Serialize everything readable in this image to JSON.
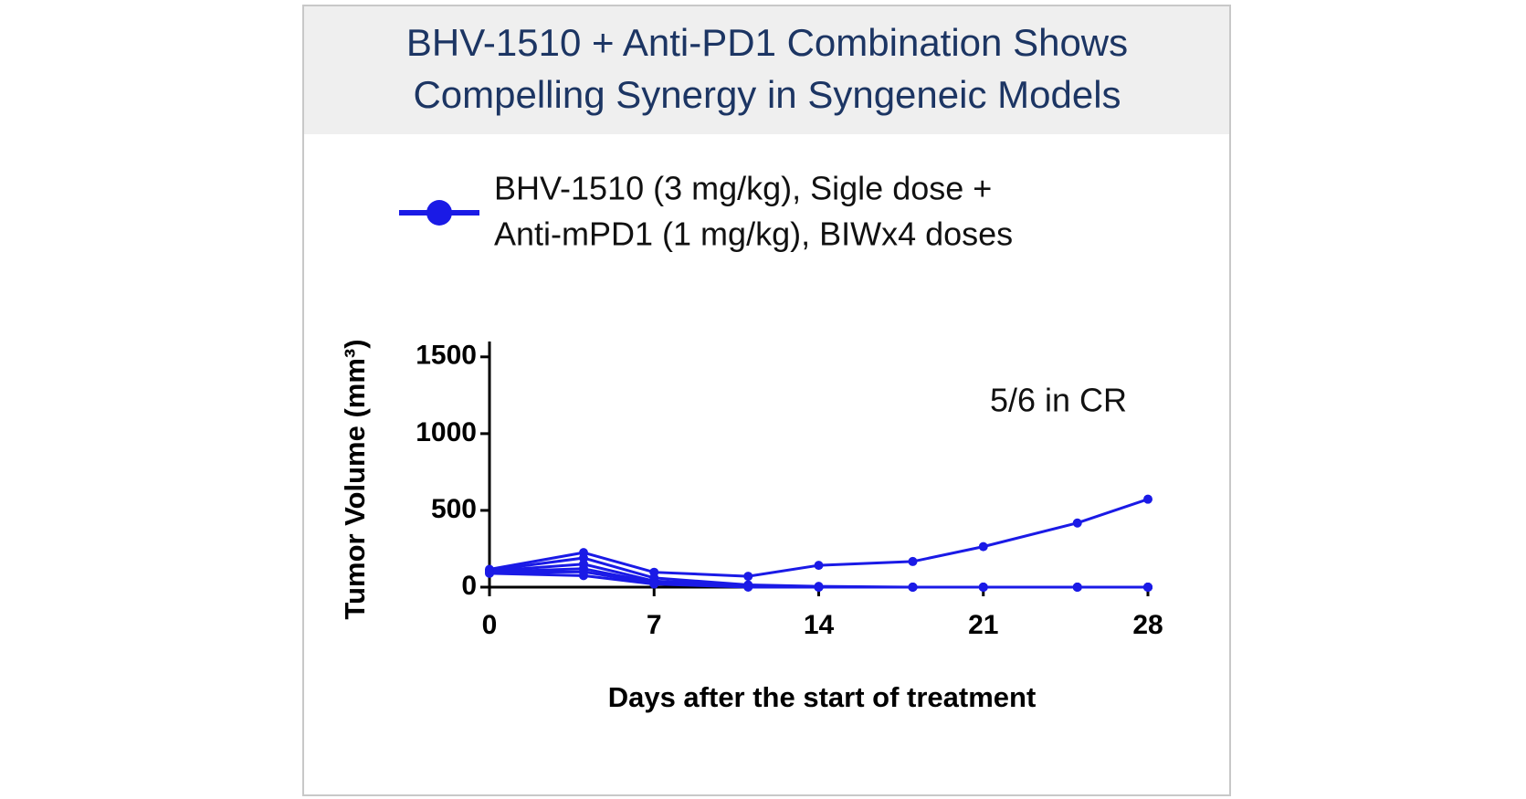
{
  "chart_data": {
    "type": "line",
    "title": [
      "BHV-1510 + Anti-PD1 Combination Shows",
      "Compelling Synergy in Syngeneic Models"
    ],
    "series": [
      {
        "name": [
          "BHV-1510 (3 mg/kg), Sigle dose +",
          "Anti-mPD1 (1 mg/kg), BIWx4 doses"
        ],
        "color": "#1a1ae6",
        "values": [
          [
            116,
            225,
            97,
            71,
            142,
            167,
            264,
            418,
            573
          ],
          [
            110,
            190,
            60,
            15,
            5,
            0,
            0,
            0,
            0
          ],
          [
            105,
            150,
            40,
            10,
            0,
            0,
            0,
            0,
            0
          ],
          [
            100,
            120,
            30,
            5,
            0,
            0,
            0,
            0,
            0
          ],
          [
            95,
            100,
            25,
            3,
            0,
            0,
            0,
            0,
            0
          ],
          [
            90,
            75,
            20,
            0,
            0,
            0,
            0,
            0,
            0
          ]
        ]
      }
    ],
    "x": [
      0,
      4,
      7,
      11,
      14,
      18,
      21,
      25,
      28
    ],
    "xlim": [
      0,
      28
    ],
    "xticks": [
      0,
      7,
      14,
      21,
      28
    ],
    "ylim": [
      0,
      1600
    ],
    "yticks": [
      0,
      500,
      1000,
      1500
    ],
    "xlabel": "Days after the start of treatment",
    "ylabel": "Tumor Volume (mm³)",
    "annotation": "5/6 in CR"
  }
}
